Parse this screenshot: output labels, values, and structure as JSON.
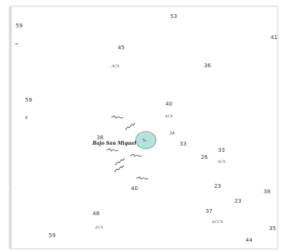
{
  "chart": {
    "soundings": [
      {
        "id": "s-53",
        "text": "53"
      },
      {
        "id": "s-59a",
        "text": "59"
      },
      {
        "id": "s-45",
        "text": "45"
      },
      {
        "id": "s-36",
        "text": "36"
      },
      {
        "id": "s-41",
        "text": "41"
      },
      {
        "id": "s-59b",
        "text": "59"
      },
      {
        "id": "s-40a",
        "text": "40"
      },
      {
        "id": "s-38",
        "text": "38"
      },
      {
        "id": "s-34",
        "text": "34"
      },
      {
        "id": "s-33a",
        "text": "33"
      },
      {
        "id": "s-33b",
        "text": "33"
      },
      {
        "id": "s-26",
        "text": "26"
      },
      {
        "id": "s-23a",
        "text": "23"
      },
      {
        "id": "s-23b",
        "text": "23"
      },
      {
        "id": "s-38b",
        "text": "38"
      },
      {
        "id": "s-40b",
        "text": "40"
      },
      {
        "id": "s-48",
        "text": "48"
      },
      {
        "id": "s-37",
        "text": "37"
      },
      {
        "id": "s-35",
        "text": "35"
      },
      {
        "id": "s-59c",
        "text": "59"
      },
      {
        "id": "s-44",
        "text": "44"
      }
    ],
    "bottom_codes": [
      {
        "id": "bc-1",
        "text": "ACh"
      },
      {
        "id": "bc-2",
        "text": "ACh"
      },
      {
        "id": "bc-3",
        "text": "ACh"
      },
      {
        "id": "bc-4",
        "text": "ACh"
      },
      {
        "id": "bc-5",
        "text": "ACCh"
      }
    ],
    "place_label": "Bajo San Miguel",
    "shoal_label": "5₂",
    "colors": {
      "shoal_fill": "#b8e0dc",
      "shoal_stroke": "#6a9a96",
      "background": "#ffffff"
    }
  }
}
